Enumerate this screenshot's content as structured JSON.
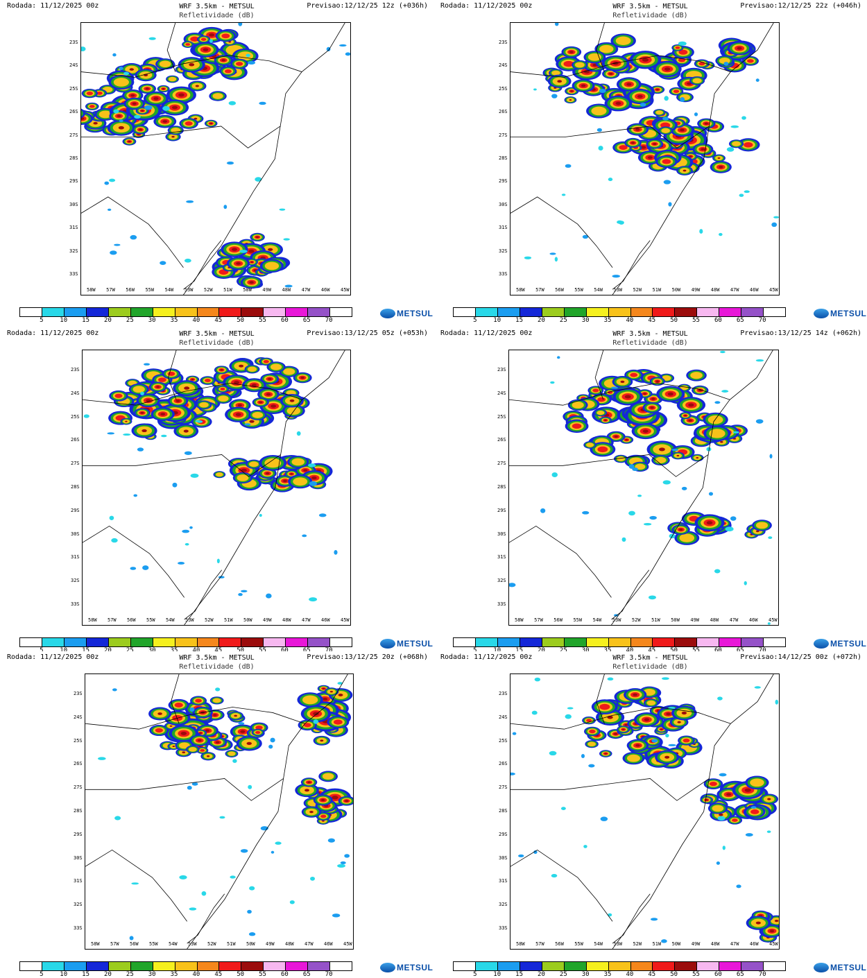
{
  "panel_title": "WRF 3.5km - METSUL",
  "panel_subtitle": "Refletividade (dB)",
  "logo_text": "METSUL",
  "lat_labels": [
    "23S",
    "24S",
    "25S",
    "26S",
    "27S",
    "28S",
    "29S",
    "30S",
    "31S",
    "32S",
    "33S"
  ],
  "lon_labels": [
    "58W",
    "57W",
    "56W",
    "55W",
    "54W",
    "53W",
    "52W",
    "51W",
    "50W",
    "49W",
    "48W",
    "47W",
    "46W",
    "45W"
  ],
  "colorbar": {
    "labels": [
      "5",
      "10",
      "15",
      "20",
      "25",
      "30",
      "35",
      "40",
      "45",
      "50",
      "55",
      "60",
      "65",
      "70"
    ],
    "colors": [
      "#ffffff",
      "#29d8e8",
      "#1b9df0",
      "#1427d8",
      "#9ccc1e",
      "#21a52a",
      "#f5f01e",
      "#f8c21a",
      "#f5871c",
      "#f01a1a",
      "#9b0c0c",
      "#f7b8f0",
      "#e817d8",
      "#9552c8",
      "#ffffff"
    ]
  },
  "panels": [
    {
      "run": "Rodada: 11/12/2025 00z",
      "forecast": "Previsao:12/12/25 12z (+036h)"
    },
    {
      "run": "Rodada: 11/12/2025 00z",
      "forecast": "Previsao:12/12/25 22z (+046h)"
    },
    {
      "run": "Rodada: 11/12/2025 00z",
      "forecast": "Previsao:13/12/25 05z (+053h)"
    },
    {
      "run": "Rodada: 11/12/2025 00z",
      "forecast": "Previsao:13/12/25 14z (+062h)"
    },
    {
      "run": "Rodada: 11/12/2025 00z",
      "forecast": "Previsao:13/12/25 20z (+068h)"
    },
    {
      "run": "Rodada: 11/12/2025 00z",
      "forecast": "Previsao:14/12/25 00z (+072h)"
    }
  ]
}
